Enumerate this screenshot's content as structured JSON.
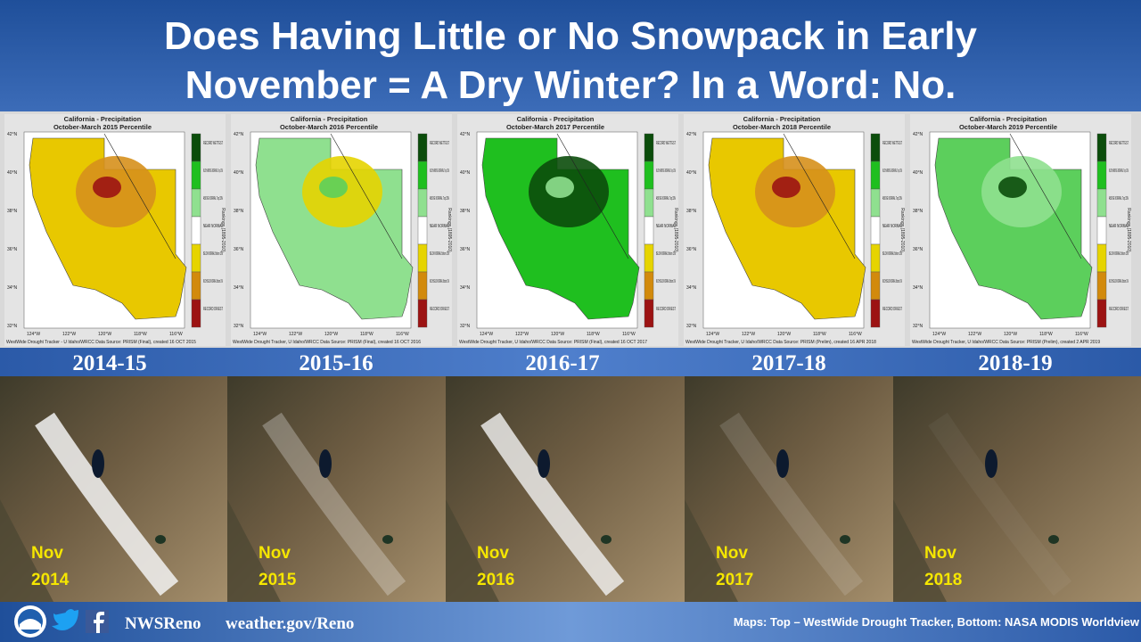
{
  "header": {
    "title_lines": [
      "Does Having Little or No Snowpack in Early",
      "November = A Dry Winter? In a Word: No."
    ]
  },
  "maps": [
    {
      "title": "California - Precipitation",
      "subtitle": "October-March 2015 Percentile",
      "year": "2014-15",
      "source": "WestWide Drought Tracker - U Idaho/WRCC  Data Source: PRISM (Final), created 16 OCT 2015"
    },
    {
      "title": "California - Precipitation",
      "subtitle": "October-March 2016 Percentile",
      "year": "2015-16",
      "source": "WestWide Drought Tracker, U Idaho/WRCC  Data Source: PRISM (Final), created 16 OCT 2016"
    },
    {
      "title": "California - Precipitation",
      "subtitle": "October-March 2017 Percentile",
      "year": "2016-17",
      "source": "WestWide Drought Tracker, U Idaho/WRCC  Data Source: PRISM (Final), created 16 OCT 2017"
    },
    {
      "title": "California - Precipitation",
      "subtitle": "October-March 2018 Percentile",
      "year": "2017-18",
      "source": "WestWide Drought Tracker, U Idaho/WRCC  Data Source: PRISM (Prelim), created 16 APR 2018"
    },
    {
      "title": "California - Precipitation",
      "subtitle": "October-March 2019 Percentile",
      "year": "2018-19",
      "source": "WestWide Drought Tracker, U Idaho/WRCC  Data Source: PRISM (Prelim), created 2 APR 2019"
    }
  ],
  "map_legend": {
    "labels": [
      "RECORD WETTEST",
      "MUCH ABOVE NORMAL Top 10%",
      "ABOVE NORMAL Top 33%",
      "NEAR NORMAL",
      "BELOW NORMAL Bottom 33%",
      "MUCH BELOW NORMAL Bottom 10%",
      "RECORD DRIEST"
    ],
    "axis_label": "Rankings (1895-2010)"
  },
  "lat_ticks": [
    "42°N",
    "40°N",
    "38°N",
    "36°N",
    "34°N",
    "32°N"
  ],
  "lon_ticks": [
    "124°W",
    "122°W",
    "120°W",
    "118°W",
    "116°W"
  ],
  "satellite": [
    {
      "month": "Nov",
      "year": "2014"
    },
    {
      "month": "Nov",
      "year": "2015"
    },
    {
      "month": "Nov",
      "year": "2016"
    },
    {
      "month": "Nov",
      "year": "2017"
    },
    {
      "month": "Nov",
      "year": "2018"
    }
  ],
  "footer": {
    "handle": "NWSReno",
    "url": "weather.gov/Reno",
    "credits": "Maps: Top – WestWide Drought Tracker, Bottom: NASA MODIS Worldview"
  }
}
